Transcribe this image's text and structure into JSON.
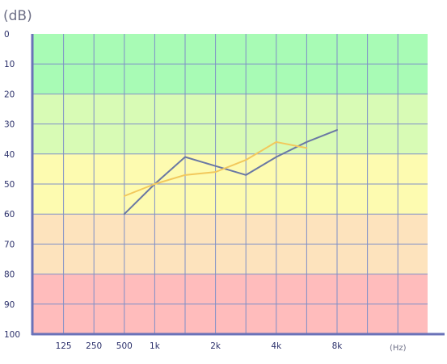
{
  "chart_data": {
    "type": "line",
    "ylabel": "(dB)",
    "xlabel": "(Hz)",
    "y_ticks": [
      "0",
      "10",
      "20",
      "30",
      "40",
      "50",
      "60",
      "70",
      "80",
      "90",
      "100"
    ],
    "ylim": [
      0,
      100
    ],
    "y_inverted": true,
    "x_ticks": [
      {
        "label": "125",
        "pos": 1
      },
      {
        "label": "250",
        "pos": 2
      },
      {
        "label": "500",
        "pos": 3
      },
      {
        "label": "1k",
        "pos": 4
      },
      {
        "label": "2k",
        "pos": 6
      },
      {
        "label": "4k",
        "pos": 8
      },
      {
        "label": "8k",
        "pos": 10
      }
    ],
    "x_grid_positions": [
      1,
      2,
      3,
      4,
      5,
      6,
      7,
      8,
      9,
      10,
      11,
      12
    ],
    "xlim": [
      0,
      13
    ],
    "grid": true,
    "bands": [
      {
        "from": 0,
        "to": 20,
        "color": "#a8fbb5"
      },
      {
        "from": 20,
        "to": 40,
        "color": "#d8fbb5"
      },
      {
        "from": 40,
        "to": 60,
        "color": "#fdfbb0"
      },
      {
        "from": 60,
        "to": 80,
        "color": "#fde3bd"
      },
      {
        "from": 80,
        "to": 100,
        "color": "#ffbcbc"
      }
    ],
    "series": [
      {
        "color": "#6a78a4",
        "x": [
          3,
          4,
          5,
          6,
          7,
          8,
          9,
          10
        ],
        "y": [
          60,
          50,
          41,
          44,
          47,
          41,
          36,
          32
        ]
      },
      {
        "color": "#f2c85c",
        "x": [
          3,
          4,
          5,
          6,
          7,
          8,
          9
        ],
        "y": [
          54,
          50,
          47,
          46,
          42,
          36,
          38
        ]
      }
    ],
    "colors": {
      "axis": "#6a72b8",
      "grid": "#7f8fc8",
      "tick_text": "#2a2f6a"
    }
  }
}
